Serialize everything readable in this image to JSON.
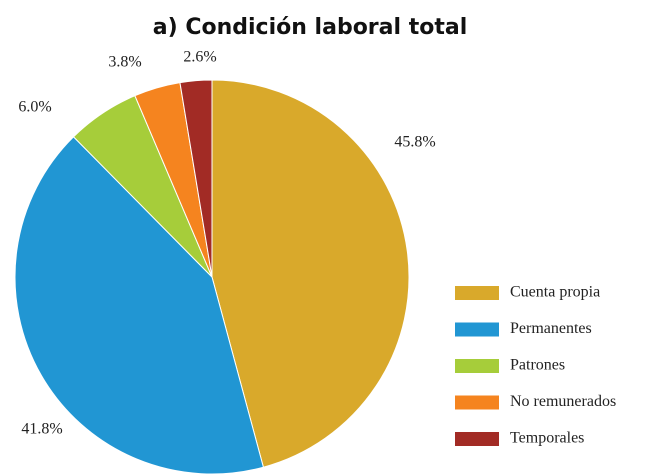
{
  "chart_data": {
    "type": "pie",
    "title": "a) Condición laboral total",
    "categories": [
      "Cuenta propia",
      "Permanentes",
      "Patrones",
      "No remunerados",
      "Temporales"
    ],
    "values": [
      45.8,
      41.8,
      6.0,
      3.8,
      2.6
    ],
    "value_labels": [
      "45.8%",
      "41.8%",
      "6.0%",
      "3.8%",
      "2.6%"
    ],
    "colors": [
      "#d9a92b",
      "#2196d3",
      "#a6cd3a",
      "#f5841f",
      "#a22b25"
    ],
    "legend": "right"
  }
}
